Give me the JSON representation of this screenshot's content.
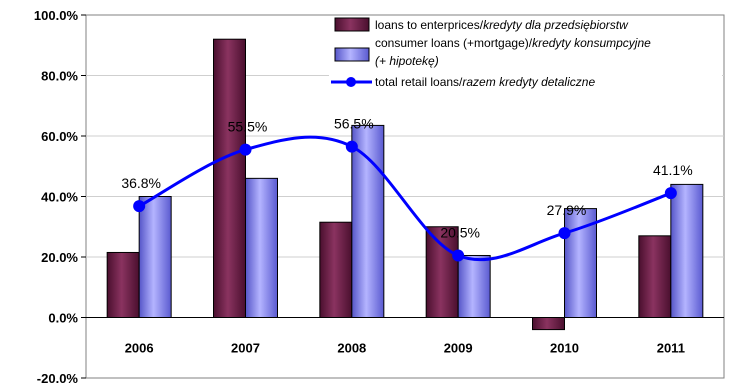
{
  "chart_data": {
    "type": "bar",
    "categories": [
      "2006",
      "2007",
      "2008",
      "2009",
      "2010",
      "2011"
    ],
    "y_tick_labels": [
      "100.0%",
      "80.0%",
      "60.0%",
      "40.0%",
      "20.0%",
      "0.0%",
      "-20.0%"
    ],
    "ylim": [
      -20,
      100
    ],
    "grid": true,
    "legend_position": "top-right",
    "series": [
      {
        "name": "loans to enterprices/kredyty dla przedsiębiorstw",
        "name_plain": "loans to enterprices/",
        "name_italic": "kredyty dla przedsiębiorstw",
        "kind": "bar",
        "color": "#6e1f49",
        "values": [
          21.5,
          92.0,
          31.5,
          30.0,
          -4.0,
          27.0
        ]
      },
      {
        "name": "consumer loans (+mortgage)/kredyty konsumpcyjne (+ hipotekę)",
        "name_plain": "consumer loans (+mortgage)/",
        "name_italic": "kredyty konsumpcyjne",
        "name_line2": "(+ hipotekę)",
        "kind": "bar",
        "color": "#8080ee",
        "values": [
          40.0,
          46.0,
          63.5,
          20.5,
          36.0,
          44.0
        ]
      },
      {
        "name": "total retail loans/razem kredyty detaliczne",
        "name_plain": "total retail loans/",
        "name_italic": "razem kredyty detaliczne",
        "kind": "line",
        "smooth": true,
        "color": "#0000ff",
        "values": [
          36.8,
          55.5,
          56.5,
          20.5,
          27.9,
          41.1
        ],
        "labels": [
          "36.8%",
          "55.5%",
          "56.5%",
          "20.5%",
          "27.9%",
          "41.1%"
        ]
      }
    ]
  }
}
